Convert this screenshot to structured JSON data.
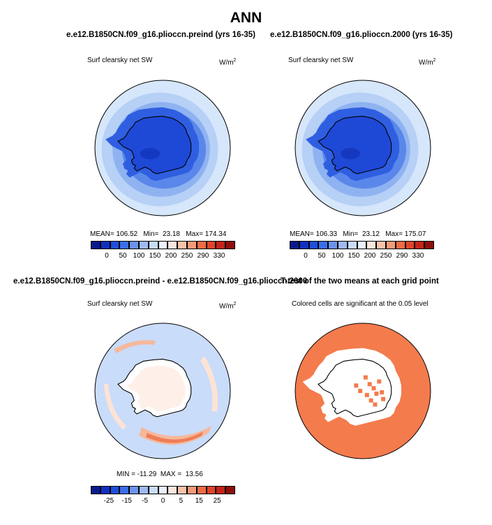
{
  "figure": {
    "main_title": "ANN",
    "top_left_title": "e.e12.B1850CN.f09_g16.plioccn.preind (yrs 16-35)",
    "top_right_title": "e.e12.B1850CN.f09_g16.plioccn.2000 (yrs 16-35)",
    "bottom_left_title": "e.e12.B1850CN.f09_g16.plioccn.preind - e.e12.B1850CN.f09_g16.plioccn.2000",
    "bottom_right_title": "T-test of the two means at each grid point"
  },
  "panels": {
    "preind": {
      "variable": "Surf clearsky net SW",
      "units": "W/m",
      "units_sup": "2",
      "stats": "MEAN= 106.52   Min=  23.18   Max= 174.34"
    },
    "y2000": {
      "variable": "Surf clearsky net SW",
      "units": "W/m",
      "units_sup": "2",
      "stats": "MEAN= 106.33   Min=  23.12   Max= 175.07"
    },
    "diff": {
      "variable": "Surf clearsky net SW",
      "units": "W/m",
      "units_sup": "2",
      "stats": "MIN = -11.29  MAX =  13.56"
    },
    "ttest": {
      "subtitle": "Colored cells are significant at the 0.05 level"
    }
  },
  "colorbars": {
    "abs_colors": [
      "#0a1a8c",
      "#1030c0",
      "#1f4fdc",
      "#3a6ee8",
      "#6b93ee",
      "#9ebaf4",
      "#c9dcfa",
      "#e8f1fd",
      "#fde7dc",
      "#f9c3aa",
      "#f49a78",
      "#ee6b44",
      "#e2442a",
      "#c42418",
      "#8e0e0c"
    ],
    "abs_labels": [
      "0",
      "50",
      "100",
      "150",
      "200",
      "250",
      "290",
      "330"
    ],
    "diff_colors": [
      "#0a1a8c",
      "#1030c0",
      "#1f4fdc",
      "#3a6ee8",
      "#6b93ee",
      "#9ebaf4",
      "#c9dcfa",
      "#e8f1fd",
      "#fde7dc",
      "#f9c3aa",
      "#f49a78",
      "#ee6b44",
      "#e2442a",
      "#c42418",
      "#8e0e0c"
    ],
    "diff_labels": [
      "-25",
      "-15",
      "-5",
      "0",
      "5",
      "15",
      "25"
    ]
  },
  "colors": {
    "ocean_light": "#d6e6fb",
    "band2": "#b6d0f6",
    "band3": "#8fb2f1",
    "band4": "#5a87ea",
    "band5": "#2f5fe0",
    "ice": "#1e48d6",
    "ice_dark": "#1438bf",
    "diff_bg": "#c9dcfa",
    "diff_pos_light": "#fde3d6",
    "diff_pos": "#f6b89b",
    "diff_pos_strong": "#ef7d58",
    "signif": "#f47b4c"
  }
}
